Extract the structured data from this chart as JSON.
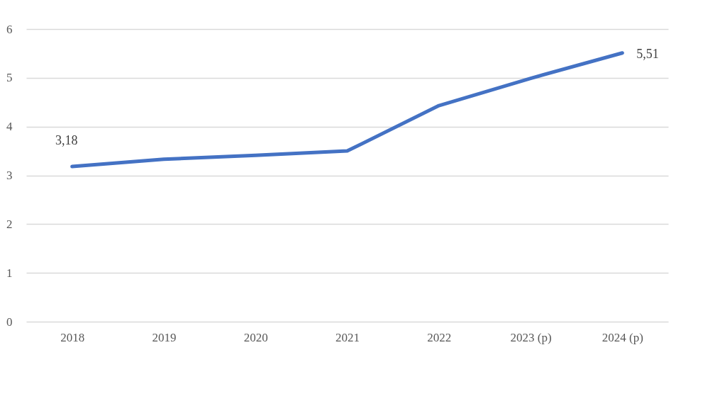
{
  "chart_data": {
    "type": "line",
    "categories": [
      "2018",
      "2019",
      "2020",
      "2021",
      "2022",
      "2023 (p)",
      "2024 (p)"
    ],
    "series": [
      {
        "color": "#4472c4",
        "values": [
          3.18,
          3.33,
          3.41,
          3.5,
          4.43,
          4.99,
          5.51
        ],
        "value_labels": [
          "3,18",
          null,
          null,
          null,
          null,
          null,
          "5,51"
        ]
      }
    ],
    "ylim": [
      0,
      6
    ],
    "yticks": [
      0,
      1,
      2,
      3,
      4,
      5,
      6
    ],
    "grid": "y",
    "legend": false,
    "marker": "none",
    "line_style": "solid"
  }
}
